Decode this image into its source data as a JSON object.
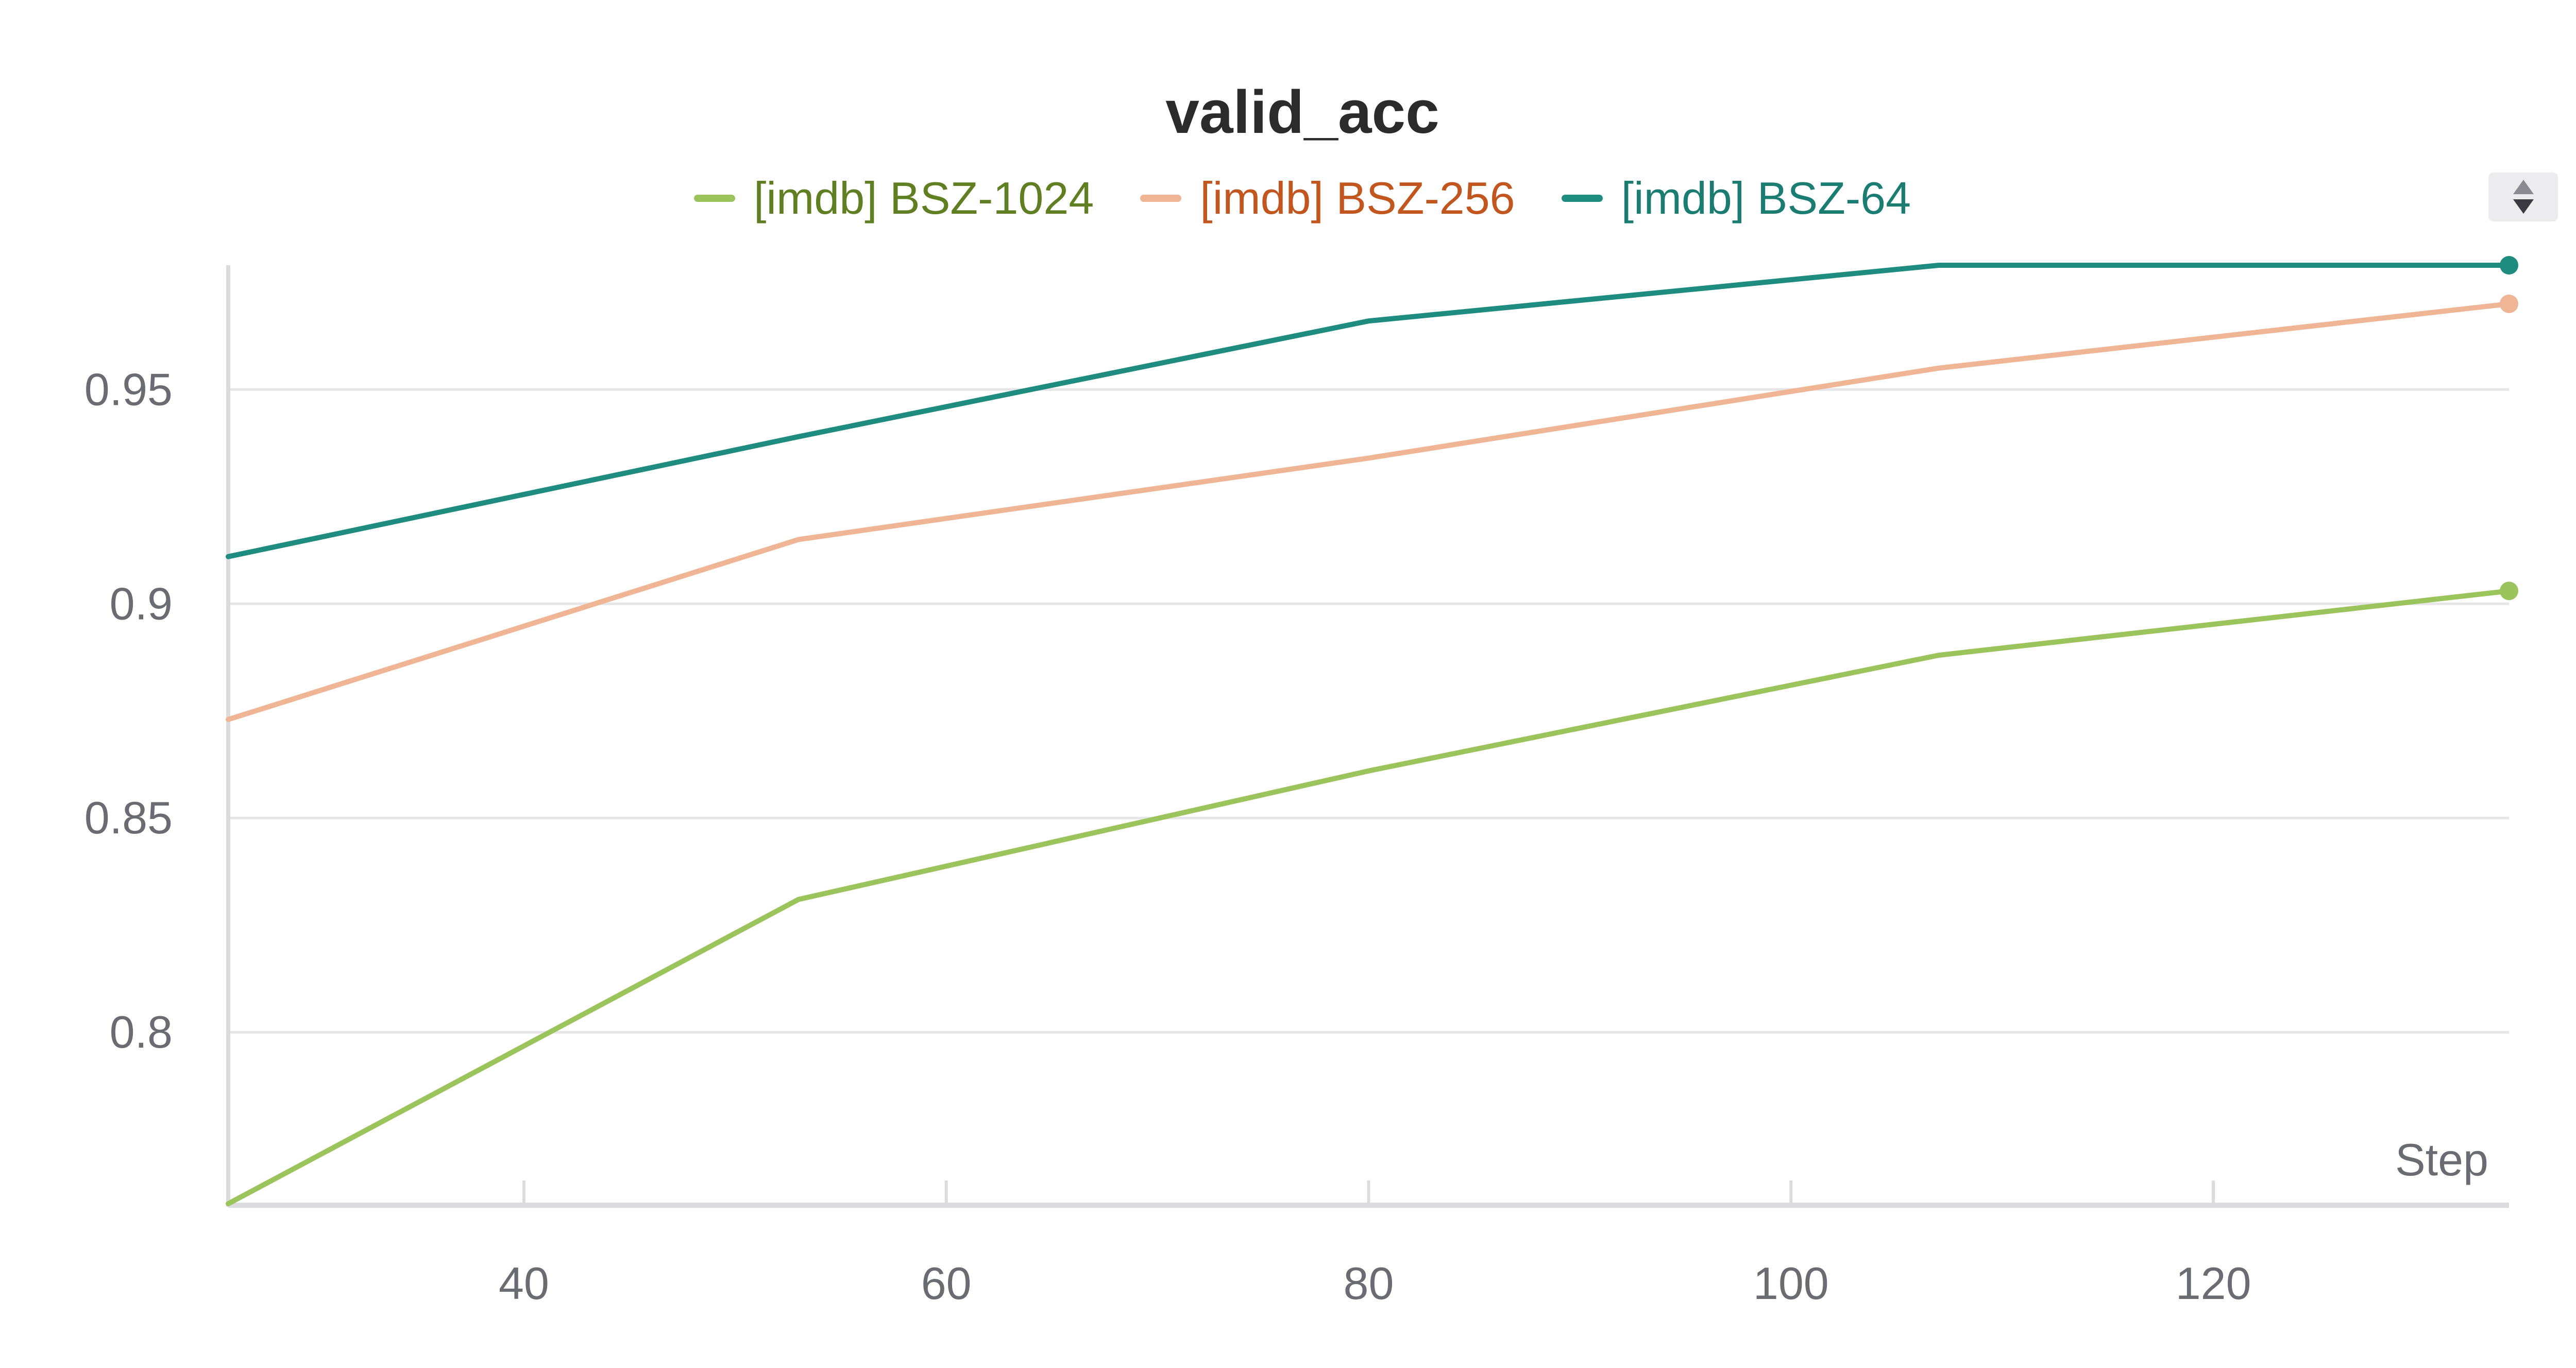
{
  "chart_data": {
    "type": "line",
    "title": "valid_acc",
    "xlabel": "Step",
    "ylabel": "",
    "xlim": [
      26,
      134
    ],
    "ylim": [
      0.76,
      0.979
    ],
    "x_ticks": [
      40,
      60,
      80,
      100,
      120
    ],
    "y_ticks": [
      0.8,
      0.85,
      0.9,
      0.95
    ],
    "y_tick_labels": [
      "0.8",
      "0.85",
      "0.9",
      "0.95"
    ],
    "grid": true,
    "legend_position": "top-center",
    "x": [
      26,
      53,
      80,
      107,
      134
    ],
    "series": [
      {
        "name": "[imdb] BSZ-1024",
        "color": "#9bc45c",
        "text_color": "#5f7f22",
        "values": [
          0.76,
          0.831,
          0.861,
          0.888,
          0.903
        ]
      },
      {
        "name": "[imdb] BSZ-256",
        "color": "#efb594",
        "text_color": "#c2561f",
        "values": [
          0.873,
          0.915,
          0.934,
          0.955,
          0.97
        ]
      },
      {
        "name": "[imdb] BSZ-64",
        "color": "#1f8c80",
        "text_color": "#1b7d72",
        "values": [
          0.911,
          0.939,
          0.966,
          0.979,
          0.979
        ]
      }
    ]
  }
}
